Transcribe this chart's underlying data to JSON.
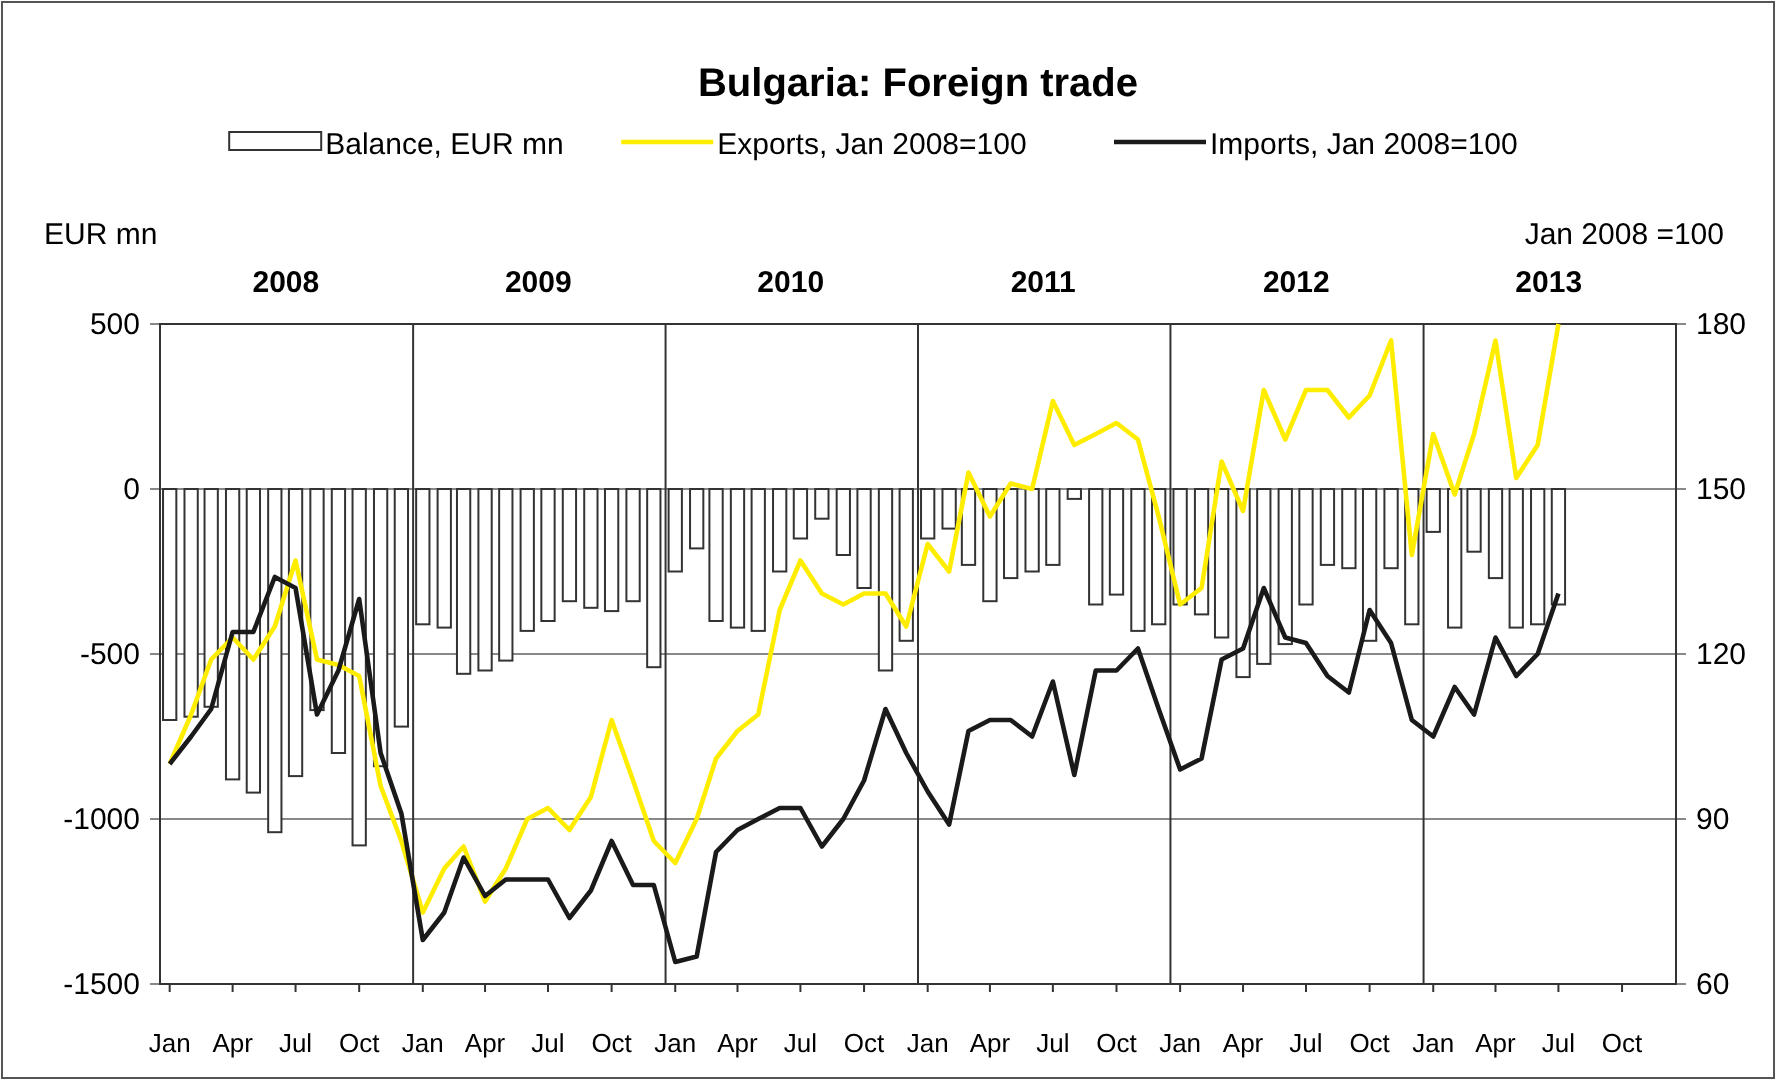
{
  "chart_data": {
    "type": "bar",
    "title": "Bulgaria: Foreign trade",
    "ylabel": "EUR mn",
    "y2label": "Jan 2008 =100",
    "annotations": [
      "2008",
      "2009",
      "2010",
      "2011",
      "2012",
      "2013"
    ],
    "x": [
      "2008-01-15",
      "2008-02-15",
      "2008-03-15",
      "2008-04-15",
      "2008-05-15",
      "2008-06-15",
      "2008-07-15",
      "2008-08-15",
      "2008-09-15",
      "2008-10-15",
      "2008-11-15",
      "2008-12-15",
      "2009-01-15",
      "2009-02-15",
      "2009-03-15",
      "2009-04-15",
      "2009-05-15",
      "2009-06-15",
      "2009-07-15",
      "2009-08-15",
      "2009-09-15",
      "2009-10-15",
      "2009-11-15",
      "2009-12-15",
      "2010-01-15",
      "2010-02-15",
      "2010-03-15",
      "2010-04-15",
      "2010-05-15",
      "2010-06-15",
      "2010-07-15",
      "2010-08-15",
      "2010-09-15",
      "2010-10-15",
      "2010-11-15",
      "2010-12-15",
      "2011-01-15",
      "2011-02-15",
      "2011-03-15",
      "2011-04-15",
      "2011-05-15",
      "2011-06-15",
      "2011-07-15",
      "2011-08-15",
      "2011-09-15",
      "2011-10-15",
      "2011-11-15",
      "2011-12-15",
      "2012-01-15",
      "2012-02-15",
      "2012-03-15",
      "2012-04-15",
      "2012-05-15",
      "2012-06-15",
      "2012-07-15",
      "2012-08-15",
      "2012-09-15",
      "2012-10-15",
      "2012-11-15",
      "2012-12-15",
      "2013-01-15",
      "2013-02-15",
      "2013-03-15",
      "2013-04-15",
      "2013-05-15",
      "2013-06-15",
      "2013-07-15"
    ],
    "series": [
      {
        "name": "Balance, EUR mn",
        "color": "#ffffff",
        "values": [
          -700,
          -690,
          -660,
          -880,
          -920,
          -1040,
          -870,
          -670,
          -800,
          -1080,
          -840,
          -720,
          -410,
          -420,
          -560,
          -550,
          -520,
          -430,
          -400,
          -340,
          -360,
          -370,
          -340,
          -540,
          -250,
          -180,
          -400,
          -420,
          -430,
          -250,
          -150,
          -90,
          -200,
          -300,
          -550,
          -460,
          -150,
          -120,
          -230,
          -340,
          -270,
          -250,
          -230,
          -30,
          -350,
          -320,
          -430,
          -410,
          -350,
          -380,
          -450,
          -570,
          -530,
          -470,
          -350,
          -230,
          -240,
          -460,
          -240,
          -410,
          -130,
          -420,
          -190,
          -270,
          -420,
          -410,
          -350
        ]
      },
      {
        "name": "Exports, Jan 2008=100",
        "type": "line",
        "axis": "y2",
        "color": "#ffed00",
        "values": [
          100,
          109,
          119,
          123,
          119,
          125,
          137,
          119,
          118,
          116,
          96,
          86,
          73,
          81,
          85,
          75,
          81,
          90,
          92,
          88,
          94,
          108,
          97,
          86,
          82,
          90,
          101,
          106,
          109,
          128,
          137,
          131,
          129,
          131,
          131,
          125,
          140,
          135,
          153,
          145,
          151,
          150,
          166,
          158,
          160,
          162,
          159,
          145,
          129,
          132,
          155,
          146,
          168,
          159,
          168,
          168,
          163,
          167,
          177,
          138,
          160,
          149,
          160,
          177,
          152,
          158,
          180
        ]
      },
      {
        "name": "Imports, Jan 2008=100",
        "type": "line",
        "axis": "y2",
        "color": "#1a1a1a",
        "values": [
          100,
          105,
          110,
          124,
          124,
          134,
          132,
          109,
          117,
          130,
          102,
          91,
          68,
          73,
          83,
          76,
          79,
          79,
          79,
          72,
          77,
          86,
          78,
          78,
          64,
          65,
          84,
          88,
          90,
          92,
          92,
          85,
          90,
          97,
          110,
          102,
          95,
          89,
          106,
          108,
          108,
          105,
          115,
          98,
          117,
          117,
          121,
          110,
          99,
          101,
          119,
          121,
          132,
          123,
          122,
          116,
          113,
          128,
          122,
          108,
          105,
          114,
          109,
          123,
          116,
          120,
          131
        ]
      }
    ],
    "xlim": [
      "2008-01-01",
      "2014-01-01"
    ],
    "xticks": [
      {
        "value": "2008-01-15",
        "label": "Jan"
      },
      {
        "value": "2008-04-15",
        "label": "Apr"
      },
      {
        "value": "2008-07-15",
        "label": "Jul"
      },
      {
        "value": "2008-10-15",
        "label": "Oct"
      },
      {
        "value": "2009-01-15",
        "label": "Jan"
      },
      {
        "value": "2009-04-15",
        "label": "Apr"
      },
      {
        "value": "2009-07-15",
        "label": "Jul"
      },
      {
        "value": "2009-10-15",
        "label": "Oct"
      },
      {
        "value": "2010-01-15",
        "label": "Jan"
      },
      {
        "value": "2010-04-15",
        "label": "Apr"
      },
      {
        "value": "2010-07-15",
        "label": "Jul"
      },
      {
        "value": "2010-10-15",
        "label": "Oct"
      },
      {
        "value": "2011-01-15",
        "label": "Jan"
      },
      {
        "value": "2011-04-15",
        "label": "Apr"
      },
      {
        "value": "2011-07-15",
        "label": "Jul"
      },
      {
        "value": "2011-10-15",
        "label": "Oct"
      },
      {
        "value": "2012-01-15",
        "label": "Jan"
      },
      {
        "value": "2012-04-15",
        "label": "Apr"
      },
      {
        "value": "2012-07-15",
        "label": "Jul"
      },
      {
        "value": "2012-10-15",
        "label": "Oct"
      },
      {
        "value": "2013-01-15",
        "label": "Jan"
      },
      {
        "value": "2013-04-15",
        "label": "Apr"
      },
      {
        "value": "2013-07-15",
        "label": "Jul"
      },
      {
        "value": "2013-10-15",
        "label": "Oct"
      }
    ],
    "ylim": [
      -1500,
      500
    ],
    "yticks": [
      -1500,
      -1000,
      -500,
      0,
      500
    ],
    "y2lim": [
      60,
      180
    ],
    "y2ticks": [
      60,
      90,
      120,
      150,
      180
    ],
    "ref_lines": [
      {
        "axis": "x",
        "value": "2009-01-01",
        "color": "#333333"
      },
      {
        "axis": "x",
        "value": "2010-01-01",
        "color": "#333333"
      },
      {
        "axis": "x",
        "value": "2011-01-01",
        "color": "#333333"
      },
      {
        "axis": "x",
        "value": "2012-01-01",
        "color": "#333333"
      },
      {
        "axis": "x",
        "value": "2013-01-01",
        "color": "#333333"
      }
    ],
    "grid": "y",
    "legend": "top",
    "line_style": "solid",
    "marker": "none"
  }
}
